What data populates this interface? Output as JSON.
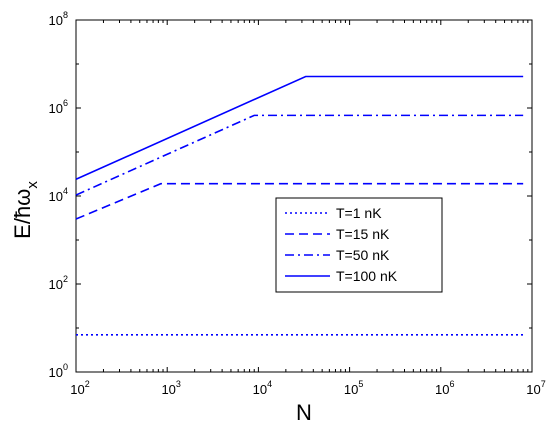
{
  "chart_data": {
    "type": "line",
    "xlabel": "N",
    "ylabel": "E/ħω",
    "ylabel_sub": "x",
    "xscale": "log",
    "yscale": "log",
    "xlim": [
      100,
      10000000
    ],
    "ylim": [
      1,
      100000000
    ],
    "x_ticks": [
      {
        "base": "10",
        "exp": "2"
      },
      {
        "base": "10",
        "exp": "3"
      },
      {
        "base": "10",
        "exp": "4"
      },
      {
        "base": "10",
        "exp": "5"
      },
      {
        "base": "10",
        "exp": "6"
      },
      {
        "base": "10",
        "exp": "7"
      }
    ],
    "y_ticks": [
      {
        "base": "10",
        "exp": "0"
      },
      {
        "base": "10",
        "exp": "2"
      },
      {
        "base": "10",
        "exp": "4"
      },
      {
        "base": "10",
        "exp": "6"
      },
      {
        "base": "10",
        "exp": "8"
      }
    ],
    "grid": false,
    "legend_position": "center-right",
    "series": [
      {
        "name": "T=1 nK",
        "style": "dotted",
        "color": "#0000ff",
        "points": [
          [
            100,
            7
          ],
          [
            8000000,
            7
          ]
        ]
      },
      {
        "name": "T=15 nK",
        "style": "dashed",
        "color": "#0000ff",
        "points": [
          [
            100,
            3000
          ],
          [
            850,
            19000
          ],
          [
            8000000,
            19000
          ]
        ]
      },
      {
        "name": "T=50 nK",
        "style": "dashdot",
        "color": "#0000ff",
        "points": [
          [
            100,
            10500
          ],
          [
            9000,
            680000
          ],
          [
            8000000,
            680000
          ]
        ]
      },
      {
        "name": "T=100 nK",
        "style": "solid",
        "color": "#0000ff",
        "points": [
          [
            100,
            24000
          ],
          [
            33000,
            5200000
          ],
          [
            8000000,
            5200000
          ]
        ]
      }
    ]
  }
}
